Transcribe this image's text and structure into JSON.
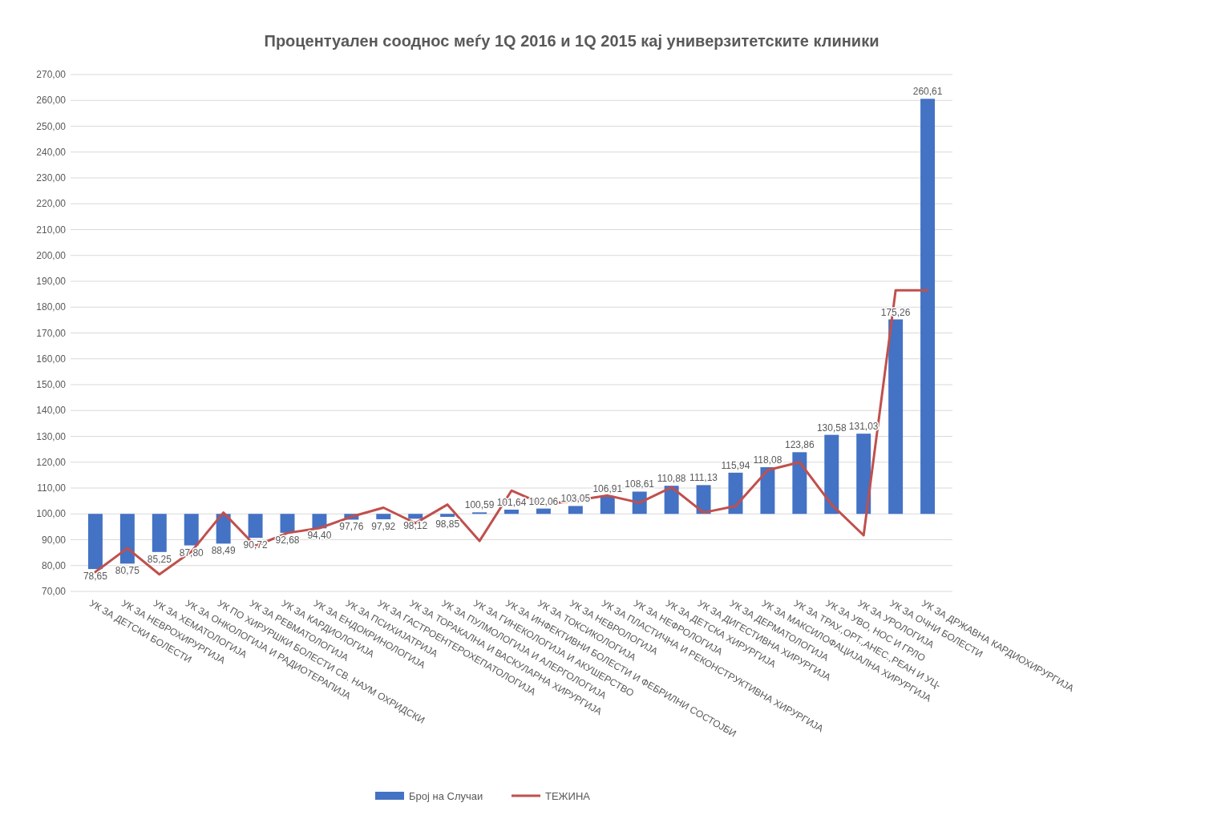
{
  "chart_data": {
    "type": "bar",
    "title": "Процентуален сооднос меѓу 1Q 2016 и 1Q 2015 кај универзитетските клиники",
    "categories": [
      "УК ЗА ДЕТСКИ БОЛЕСТИ",
      "УК ЗА НЕВРОХИРУРГИЈА",
      "УК ЗА ХЕМАТОЛОГИЈА",
      "УК ЗА ОНКОЛОГИЈА И РАДИОТЕРАПИЈА",
      "УК ПО ХИРУРШКИ БОЛЕСТИ СВ. НАУМ ОХРИДСКИ",
      "УК ЗА РЕВМАТОЛОГИЈА",
      "УК ЗА КАРДИОЛОГИЈА",
      "УК ЗА ЕНДОКРИНОЛОГИЈА",
      "УК ЗА ПСИХИЈАТРИЈА",
      "УК ЗА ГАСТРОЕНТЕРОХЕПАТОЛОГИЈА",
      "УК ЗА ТОРАКАЛНА И ВАСКУЛАРНА ХИРУРГИЈА",
      "УК ЗА ПУЛМОЛОГИЈА И АЛЕРГОЛОГИЈА",
      "УК ЗА ГИНЕКОЛОГИЈА И АКУШЕРСТВО",
      "УК ЗА ИНФЕКТИВНИ БОЛЕСТИ И ФЕБРИЛНИ СОСТОЈБИ",
      "УК ЗА ТОКСИКОЛОГИЈА",
      "УК ЗА НЕВРОЛОГИЈА",
      "УК ЗА ПЛАСТИЧНА И РЕКОНСТРУКТИВНА ХИРУРГИЈА",
      "УК ЗА НЕФРОЛОГИЈА",
      "УК ЗА ДЕТСКА ХИРУРГИЈА",
      "УК ЗА ДИГЕСТИВНА ХИРУРГИЈА",
      "УК ЗА ДЕРМАТОЛОГИЈА",
      "УК ЗА МАКСИЛОФАЦИЈАЛНА ХИРУРГИЈА",
      "УК ЗА ТРАУ.,ОРТ.,АНЕС.,РЕАН И УЦ-",
      "УК ЗА УВО, НОС И ГРЛО",
      "УК ЗА УРОЛОГИЈА",
      "УК ЗА ОЧНИ БОЛЕСТИ",
      "УК ЗА ДРЖАВНА КАРДИОХИРУРГИЈА"
    ],
    "series": [
      {
        "name": "Број на Случаи",
        "color": "#4472c4",
        "base": [
          100,
          100,
          100,
          100,
          100,
          100,
          100,
          100,
          100,
          100,
          100,
          100,
          100,
          100,
          100,
          100,
          100,
          100,
          100,
          100,
          100,
          100,
          100,
          100,
          100,
          100,
          100
        ],
        "values": [
          -21.35,
          -19.25,
          -14.75,
          -12.2,
          -11.51,
          -9.28,
          -7.32,
          -5.6,
          -2.24,
          -2.08,
          -1.88,
          -1.15,
          0.59,
          1.64,
          2.06,
          3.05,
          6.91,
          8.61,
          10.88,
          11.13,
          15.94,
          18.08,
          23.86,
          30.58,
          31.03,
          75.26,
          160.61
        ],
        "value_labels": [
          "78,65",
          "80,75",
          "85,25",
          "87,80",
          "88,49",
          "90,72",
          "92,68",
          "94,40",
          "97,76",
          "97,92",
          "98,12",
          "98,85",
          "100,59",
          "101,64",
          "102,06",
          "103,05",
          "106,91",
          "108,61",
          "110,88",
          "111,13",
          "115,94",
          "118,08",
          "123,86",
          "130,58",
          "131,03",
          "175,26",
          "260,61"
        ]
      },
      {
        "name": "ТЕЖИНА",
        "type": "line",
        "color": "#c0504d",
        "values": [
          77.5,
          86.7,
          76.6,
          85.4,
          100.5,
          87.6,
          92.6,
          94.5,
          98.9,
          102.4,
          96.4,
          103.6,
          89.5,
          109,
          103.6,
          105.2,
          107.1,
          104.3,
          110.3,
          100.5,
          103,
          116.9,
          120,
          103.6,
          91.7,
          186.5,
          186.5
        ]
      }
    ],
    "ylim": [
      70,
      270
    ],
    "yticks": [
      {
        "value": 70,
        "label": "70,00"
      },
      {
        "value": 80,
        "label": "80,00"
      },
      {
        "value": 90,
        "label": "90,00"
      },
      {
        "value": 100,
        "label": "100,00"
      },
      {
        "value": 110,
        "label": "110,00"
      },
      {
        "value": 120,
        "label": "120,00"
      },
      {
        "value": 130,
        "label": "130,00"
      },
      {
        "value": 140,
        "label": "140,00"
      },
      {
        "value": 150,
        "label": "150,00"
      },
      {
        "value": 160,
        "label": "160,00"
      },
      {
        "value": 170,
        "label": "170,00"
      },
      {
        "value": 180,
        "label": "180,00"
      },
      {
        "value": 190,
        "label": "190,00"
      },
      {
        "value": 200,
        "label": "200,00"
      },
      {
        "value": 210,
        "label": "210,00"
      },
      {
        "value": 220,
        "label": "220,00"
      },
      {
        "value": 230,
        "label": "230,00"
      },
      {
        "value": 240,
        "label": "240,00"
      },
      {
        "value": 250,
        "label": "250,00"
      },
      {
        "value": 260,
        "label": "260,00"
      },
      {
        "value": 270,
        "label": "270,00"
      }
    ],
    "grid": "y",
    "legend": "bottom"
  }
}
